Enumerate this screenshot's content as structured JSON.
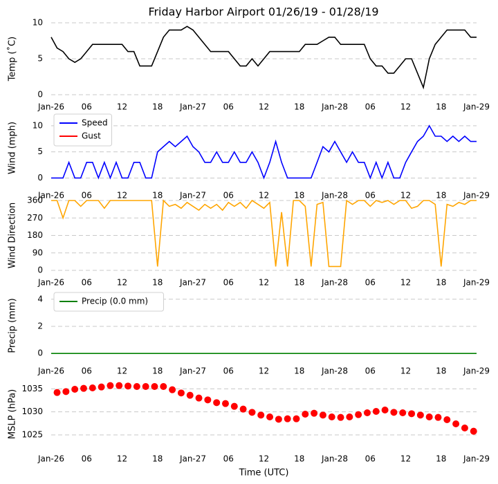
{
  "chart_data": [
    {
      "type": "line",
      "title": "Friday Harbor Airport 01/26/19 - 01/28/19",
      "ylabel": "Temp (˚C)",
      "x": [
        0,
        1,
        2,
        3,
        4,
        5,
        6,
        7,
        8,
        9,
        10,
        11,
        12,
        13,
        14,
        15,
        16,
        17,
        18,
        19,
        20,
        21,
        22,
        23,
        24,
        25,
        26,
        27,
        28,
        29,
        30,
        31,
        32,
        33,
        34,
        35,
        36,
        37,
        38,
        39,
        40,
        41,
        42,
        43,
        44,
        45,
        46,
        47,
        48,
        49,
        50,
        51,
        52,
        53,
        54,
        55,
        56,
        57,
        58,
        59,
        60,
        61,
        62,
        63,
        64,
        65,
        66,
        67,
        68,
        69,
        70,
        71,
        72
      ],
      "series": [
        {
          "name": "Temp",
          "color": "#000000",
          "values": [
            8,
            6.5,
            6,
            5,
            4.5,
            5,
            6,
            7,
            7,
            7,
            7,
            7,
            7,
            6,
            6,
            4,
            4,
            4,
            6,
            8,
            9,
            9,
            9,
            9.5,
            9,
            8,
            7,
            6,
            6,
            6,
            6,
            5,
            4,
            4,
            5,
            4,
            5,
            6,
            6,
            6,
            6,
            6,
            6,
            7,
            7,
            7,
            7.5,
            8,
            8,
            7,
            7,
            7,
            7,
            7,
            5,
            4,
            4,
            3,
            3,
            4,
            5,
            5,
            3,
            1,
            5,
            7,
            8,
            9,
            9,
            9,
            9,
            8,
            8
          ]
        }
      ],
      "xlim": [
        0,
        72
      ],
      "xticks": [
        {
          "value": 0,
          "label": "Jan-26"
        },
        {
          "value": 6,
          "label": "06"
        },
        {
          "value": 12,
          "label": "12"
        },
        {
          "value": 18,
          "label": "18"
        },
        {
          "value": 24,
          "label": "Jan-27"
        },
        {
          "value": 30,
          "label": "06"
        },
        {
          "value": 36,
          "label": "12"
        },
        {
          "value": 42,
          "label": "18"
        },
        {
          "value": 48,
          "label": "Jan-28"
        },
        {
          "value": 54,
          "label": "06"
        },
        {
          "value": 60,
          "label": "12"
        },
        {
          "value": 66,
          "label": "18"
        },
        {
          "value": 72,
          "label": "Jan-29"
        }
      ],
      "ylim": [
        0,
        10
      ],
      "yticks": [
        0,
        5,
        10
      ],
      "grid": true
    },
    {
      "type": "line",
      "ylabel": "Wind (mph)",
      "legend": "upper left",
      "x": [
        0,
        1,
        2,
        3,
        4,
        5,
        6,
        7,
        8,
        9,
        10,
        11,
        12,
        13,
        14,
        15,
        16,
        17,
        18,
        19,
        20,
        21,
        22,
        23,
        24,
        25,
        26,
        27,
        28,
        29,
        30,
        31,
        32,
        33,
        34,
        35,
        36,
        37,
        38,
        39,
        40,
        41,
        42,
        43,
        44,
        45,
        46,
        47,
        48,
        49,
        50,
        51,
        52,
        53,
        54,
        55,
        56,
        57,
        58,
        59,
        60,
        61,
        62,
        63,
        64,
        65,
        66,
        67,
        68,
        69,
        70,
        71,
        72
      ],
      "series": [
        {
          "name": "Speed",
          "color": "#0000ff",
          "values": [
            0,
            0,
            0,
            3,
            0,
            0,
            3,
            3,
            0,
            3,
            0,
            3,
            0,
            0,
            3,
            3,
            0,
            0,
            5,
            6,
            7,
            6,
            7,
            8,
            6,
            5,
            3,
            3,
            5,
            3,
            3,
            5,
            3,
            3,
            5,
            3,
            0,
            3,
            7,
            3,
            0,
            0,
            0,
            0,
            0,
            3,
            6,
            5,
            7,
            5,
            3,
            5,
            3,
            3,
            0,
            3,
            0,
            3,
            0,
            0,
            3,
            5,
            7,
            8,
            10,
            8,
            8,
            7,
            8,
            7,
            8,
            7,
            7
          ]
        },
        {
          "name": "Gust",
          "color": "#ff0000",
          "values": [
            null,
            null,
            null,
            null,
            null,
            null,
            null,
            null,
            null,
            null,
            null,
            null,
            null,
            null,
            null,
            null,
            null,
            null,
            null,
            null,
            null,
            null,
            null,
            null,
            null,
            null,
            null,
            null,
            null,
            null,
            null,
            null,
            null,
            null,
            null,
            null,
            null,
            null,
            null,
            null,
            null,
            null,
            null,
            null,
            null,
            null,
            null,
            null,
            null,
            null,
            null,
            null,
            null,
            null,
            null,
            null,
            null,
            null,
            null,
            null,
            null,
            null,
            null,
            null,
            null,
            null,
            null,
            null,
            null,
            null,
            null,
            null,
            null
          ]
        }
      ],
      "xlim": [
        0,
        72
      ],
      "xticks": [
        {
          "value": 0,
          "label": "Jan-26"
        },
        {
          "value": 6,
          "label": "06"
        },
        {
          "value": 12,
          "label": "12"
        },
        {
          "value": 18,
          "label": "18"
        },
        {
          "value": 24,
          "label": "Jan-27"
        },
        {
          "value": 30,
          "label": "06"
        },
        {
          "value": 36,
          "label": "12"
        },
        {
          "value": 42,
          "label": "18"
        },
        {
          "value": 48,
          "label": "Jan-28"
        },
        {
          "value": 54,
          "label": "06"
        },
        {
          "value": 60,
          "label": "12"
        },
        {
          "value": 66,
          "label": "18"
        },
        {
          "value": 72,
          "label": "Jan-29"
        }
      ],
      "ylim": [
        -1,
        12.5
      ],
      "yticks": [
        0,
        5,
        10
      ],
      "grid": true
    },
    {
      "type": "line",
      "ylabel": "Wind Direction",
      "x": [
        0,
        1,
        2,
        3,
        4,
        5,
        6,
        7,
        8,
        9,
        10,
        11,
        12,
        13,
        14,
        15,
        16,
        17,
        18,
        19,
        20,
        21,
        22,
        23,
        24,
        25,
        26,
        27,
        28,
        29,
        30,
        31,
        32,
        33,
        34,
        35,
        36,
        37,
        38,
        39,
        40,
        41,
        42,
        43,
        44,
        45,
        46,
        47,
        48,
        49,
        50,
        51,
        52,
        53,
        54,
        55,
        56,
        57,
        58,
        59,
        60,
        61,
        62,
        63,
        64,
        65,
        66,
        67,
        68,
        69,
        70,
        71,
        72
      ],
      "series": [
        {
          "name": "Direction",
          "color": "#ffa500",
          "values": [
            360,
            360,
            270,
            360,
            360,
            330,
            360,
            360,
            360,
            320,
            360,
            360,
            360,
            360,
            360,
            360,
            360,
            360,
            20,
            360,
            330,
            340,
            320,
            350,
            330,
            310,
            340,
            320,
            340,
            310,
            350,
            330,
            350,
            320,
            360,
            340,
            320,
            350,
            20,
            300,
            20,
            360,
            360,
            330,
            20,
            340,
            350,
            20,
            20,
            20,
            360,
            340,
            360,
            360,
            330,
            360,
            350,
            360,
            340,
            360,
            360,
            320,
            330,
            360,
            360,
            340,
            20,
            340,
            330,
            350,
            340,
            360,
            360
          ]
        }
      ],
      "xlim": [
        0,
        72
      ],
      "xticks": [
        {
          "value": 0,
          "label": "Jan-26"
        },
        {
          "value": 6,
          "label": "06"
        },
        {
          "value": 12,
          "label": "12"
        },
        {
          "value": 18,
          "label": "18"
        },
        {
          "value": 24,
          "label": "Jan-27"
        },
        {
          "value": 30,
          "label": "06"
        },
        {
          "value": 36,
          "label": "12"
        },
        {
          "value": 42,
          "label": "18"
        },
        {
          "value": 48,
          "label": "Jan-28"
        },
        {
          "value": 54,
          "label": "06"
        },
        {
          "value": 60,
          "label": "12"
        },
        {
          "value": 66,
          "label": "18"
        },
        {
          "value": 72,
          "label": "Jan-29"
        }
      ],
      "ylim": [
        0,
        360
      ],
      "yticks": [
        0,
        90,
        180,
        270,
        360
      ],
      "grid": true
    },
    {
      "type": "line",
      "ylabel": "Precip (mm)",
      "legend": "upper left",
      "x": [
        0,
        1,
        2,
        3,
        4,
        5,
        6,
        7,
        8,
        9,
        10,
        11,
        12,
        13,
        14,
        15,
        16,
        17,
        18,
        19,
        20,
        21,
        22,
        23,
        24,
        25,
        26,
        27,
        28,
        29,
        30,
        31,
        32,
        33,
        34,
        35,
        36,
        37,
        38,
        39,
        40,
        41,
        42,
        43,
        44,
        45,
        46,
        47,
        48,
        49,
        50,
        51,
        52,
        53,
        54,
        55,
        56,
        57,
        58,
        59,
        60,
        61,
        62,
        63,
        64,
        65,
        66,
        67,
        68,
        69,
        70,
        71,
        72
      ],
      "series": [
        {
          "name": "Precip (0.0 mm)",
          "color": "#008000",
          "values": [
            0,
            0,
            0,
            0,
            0,
            0,
            0,
            0,
            0,
            0,
            0,
            0,
            0,
            0,
            0,
            0,
            0,
            0,
            0,
            0,
            0,
            0,
            0,
            0,
            0,
            0,
            0,
            0,
            0,
            0,
            0,
            0,
            0,
            0,
            0,
            0,
            0,
            0,
            0,
            0,
            0,
            0,
            0,
            0,
            0,
            0,
            0,
            0,
            0,
            0,
            0,
            0,
            0,
            0,
            0,
            0,
            0,
            0,
            0,
            0,
            0,
            0,
            0,
            0,
            0,
            0,
            0,
            0,
            0,
            0,
            0,
            0,
            0
          ]
        }
      ],
      "xlim": [
        0,
        72
      ],
      "xticks": [
        {
          "value": 0,
          "label": "Jan-26"
        },
        {
          "value": 6,
          "label": "06"
        },
        {
          "value": 12,
          "label": "12"
        },
        {
          "value": 18,
          "label": "18"
        },
        {
          "value": 24,
          "label": "Jan-27"
        },
        {
          "value": 30,
          "label": "06"
        },
        {
          "value": 36,
          "label": "12"
        },
        {
          "value": 42,
          "label": "18"
        },
        {
          "value": 48,
          "label": "Jan-28"
        },
        {
          "value": 54,
          "label": "06"
        },
        {
          "value": 60,
          "label": "12"
        },
        {
          "value": 66,
          "label": "18"
        },
        {
          "value": 72,
          "label": "Jan-29"
        }
      ],
      "ylim": [
        -0.5,
        4.6
      ],
      "yticks": [
        0,
        2,
        4
      ],
      "grid": true
    },
    {
      "type": "scatter",
      "ylabel": "MSLP (hPa)",
      "xlabel": "Time (UTC)",
      "x": [
        1,
        2.5,
        4,
        5.5,
        7,
        8.5,
        10,
        11.5,
        13,
        14.5,
        16,
        17.5,
        19,
        20.5,
        22,
        23.5,
        25,
        26.5,
        28,
        29.5,
        31,
        32.5,
        34,
        35.5,
        37,
        38.5,
        40,
        41.5,
        43,
        44.5,
        46,
        47.5,
        49,
        50.5,
        52,
        53.5,
        55,
        56.5,
        58,
        59.5,
        61,
        62.5,
        64,
        65.5,
        67,
        68.5,
        70,
        71.5
      ],
      "series": [
        {
          "name": "MSLP",
          "color": "#ff0000",
          "values": [
            1034.2,
            1034.4,
            1034.9,
            1035.1,
            1035.2,
            1035.4,
            1035.7,
            1035.7,
            1035.6,
            1035.5,
            1035.5,
            1035.5,
            1035.5,
            1034.8,
            1034.1,
            1033.6,
            1033.0,
            1032.6,
            1032.0,
            1031.8,
            1031.2,
            1030.6,
            1029.9,
            1029.3,
            1028.9,
            1028.4,
            1028.5,
            1028.5,
            1029.5,
            1029.7,
            1029.3,
            1028.9,
            1028.8,
            1028.9,
            1029.4,
            1029.8,
            1030.1,
            1030.4,
            1029.9,
            1029.8,
            1029.6,
            1029.3,
            1028.9,
            1028.8,
            1028.3,
            1027.4,
            1026.5,
            1025.8
          ]
        }
      ],
      "xlim": [
        0,
        72
      ],
      "xticks": [
        {
          "value": 0,
          "label": "Jan-26"
        },
        {
          "value": 6,
          "label": "06"
        },
        {
          "value": 12,
          "label": "12"
        },
        {
          "value": 18,
          "label": "18"
        },
        {
          "value": 24,
          "label": "Jan-27"
        },
        {
          "value": 30,
          "label": "06"
        },
        {
          "value": 36,
          "label": "12"
        },
        {
          "value": 42,
          "label": "18"
        },
        {
          "value": 48,
          "label": "Jan-28"
        },
        {
          "value": 54,
          "label": "06"
        },
        {
          "value": 60,
          "label": "12"
        },
        {
          "value": 66,
          "label": "18"
        },
        {
          "value": 72,
          "label": "Jan-29"
        }
      ],
      "ylim": [
        1022,
        1037
      ],
      "yticks": [
        1025,
        1030,
        1035
      ],
      "grid": true
    }
  ]
}
